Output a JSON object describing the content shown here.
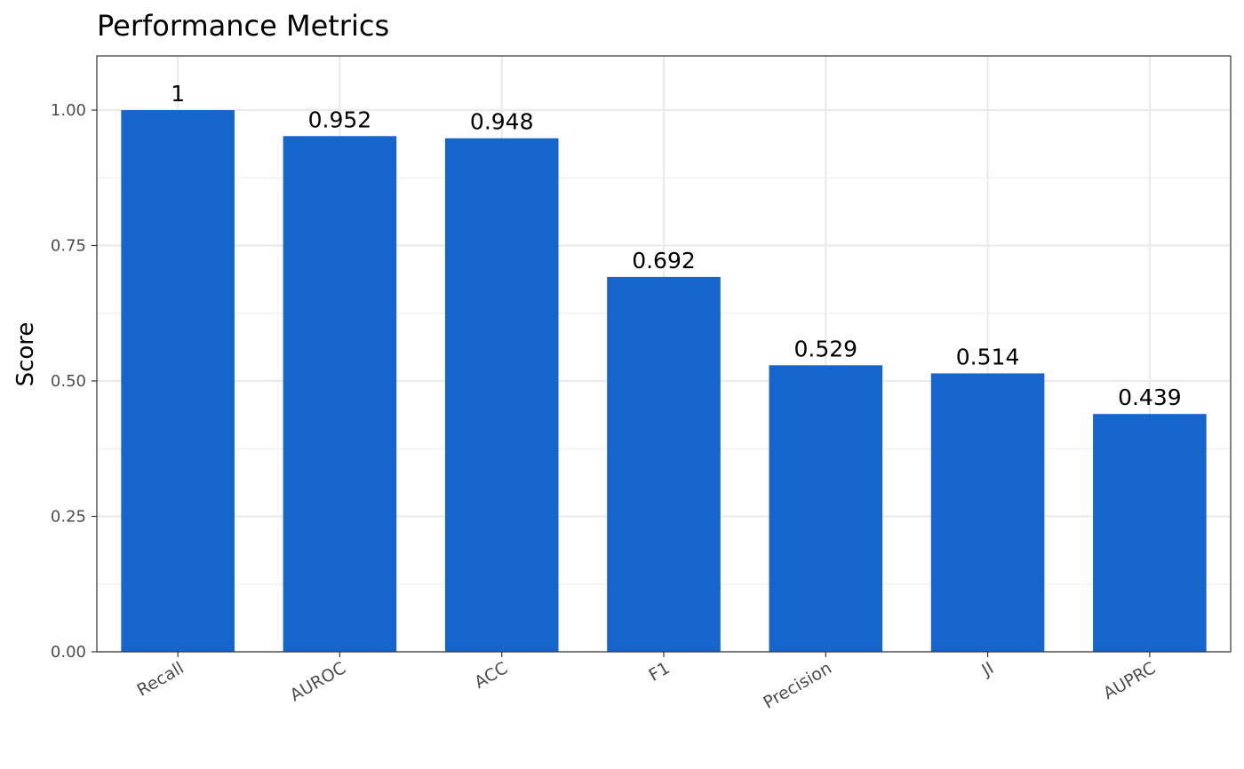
{
  "chart_data": {
    "type": "bar",
    "title": "Performance Metrics",
    "xlabel": "",
    "ylabel": "Score",
    "categories": [
      "Recall",
      "AUROC",
      "ACC",
      "F1",
      "Precision",
      "JI",
      "AUPRC"
    ],
    "values": [
      1,
      0.952,
      0.948,
      0.692,
      0.529,
      0.514,
      0.439
    ],
    "data_labels": [
      "1",
      "0.952",
      "0.948",
      "0.692",
      "0.529",
      "0.514",
      "0.439"
    ],
    "ylim": [
      0,
      1.1
    ],
    "yticks": [
      0,
      0.25,
      0.5,
      0.75,
      1
    ],
    "ytick_labels": [
      "0.00",
      "0.25",
      "0.50",
      "0.75",
      "1.00"
    ],
    "grid": true,
    "legend": "none",
    "bar_color": "#1565CC",
    "grid_color": "#EBEBEB",
    "panel_border_color": "#333333"
  }
}
